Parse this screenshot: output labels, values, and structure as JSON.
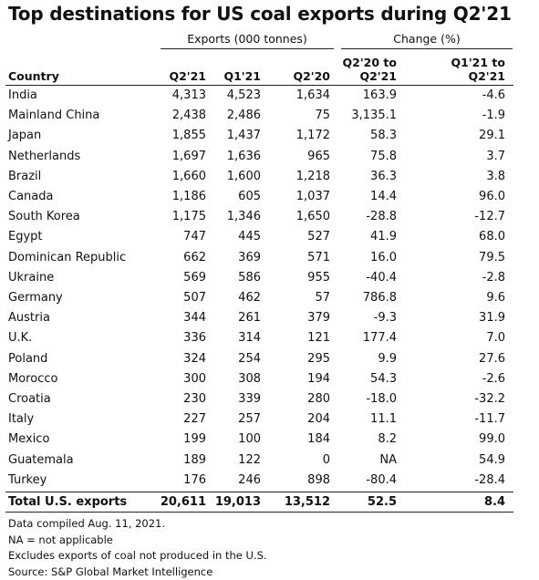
{
  "chart_data": {
    "type": "table",
    "title": "Top destinations for US coal exports during Q2'21",
    "group_headers": [
      "Exports (000 tonnes)",
      "Change (%)"
    ],
    "columns": [
      "Country",
      "Q2'21",
      "Q1'21",
      "Q2'20",
      "Q2'20 to Q2'21",
      "Q1'21 to Q2'21"
    ],
    "rows": [
      [
        "India",
        "4,313",
        "4,523",
        "1,634",
        "163.9",
        "-4.6"
      ],
      [
        "Mainland China",
        "2,438",
        "2,486",
        "75",
        "3,135.1",
        "-1.9"
      ],
      [
        "Japan",
        "1,855",
        "1,437",
        "1,172",
        "58.3",
        "29.1"
      ],
      [
        "Netherlands",
        "1,697",
        "1,636",
        "965",
        "75.8",
        "3.7"
      ],
      [
        "Brazil",
        "1,660",
        "1,600",
        "1,218",
        "36.3",
        "3.8"
      ],
      [
        "Canada",
        "1,186",
        "605",
        "1,037",
        "14.4",
        "96.0"
      ],
      [
        "South Korea",
        "1,175",
        "1,346",
        "1,650",
        "-28.8",
        "-12.7"
      ],
      [
        "Egypt",
        "747",
        "445",
        "527",
        "41.9",
        "68.0"
      ],
      [
        "Dominican Republic",
        "662",
        "369",
        "571",
        "16.0",
        "79.5"
      ],
      [
        "Ukraine",
        "569",
        "586",
        "955",
        "-40.4",
        "-2.8"
      ],
      [
        "Germany",
        "507",
        "462",
        "57",
        "786.8",
        "9.6"
      ],
      [
        "Austria",
        "344",
        "261",
        "379",
        "-9.3",
        "31.9"
      ],
      [
        "U.K.",
        "336",
        "314",
        "121",
        "177.4",
        "7.0"
      ],
      [
        "Poland",
        "324",
        "254",
        "295",
        "9.9",
        "27.6"
      ],
      [
        "Morocco",
        "300",
        "308",
        "194",
        "54.3",
        "-2.6"
      ],
      [
        "Croatia",
        "230",
        "339",
        "280",
        "-18.0",
        "-32.2"
      ],
      [
        "Italy",
        "227",
        "257",
        "204",
        "11.1",
        "-11.7"
      ],
      [
        "Mexico",
        "199",
        "100",
        "184",
        "8.2",
        "99.0"
      ],
      [
        "Guatemala",
        "189",
        "122",
        "0",
        "NA",
        "54.9"
      ],
      [
        "Turkey",
        "176",
        "246",
        "898",
        "-80.4",
        "-28.4"
      ]
    ],
    "total_row": [
      "Total U.S. exports",
      "20,611",
      "19,013",
      "13,512",
      "52.5",
      "8.4"
    ]
  },
  "header_lines": {
    "country": "Country",
    "q2_21": "Q2'21",
    "q1_21": "Q1'21",
    "q2_20": "Q2'20",
    "chg1_line1": "Q2'20 to",
    "chg1_line2": "Q2'21",
    "chg2_line1": "Q1'21 to",
    "chg2_line2": "Q2'21"
  },
  "footnotes": [
    "Data compiled Aug. 11, 2021.",
    "NA = not applicable",
    "Excludes exports of coal not produced in the U.S.",
    "Source: S&P Global Market Intelligence"
  ]
}
